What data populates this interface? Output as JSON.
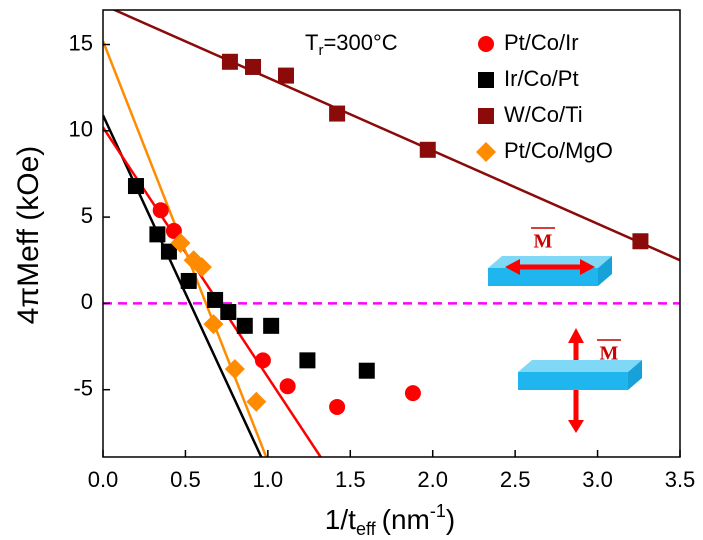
{
  "chart_data": {
    "type": "scatter",
    "annotation": {
      "base": "T",
      "sub": "r",
      "rest": "=300°C"
    },
    "x_label": {
      "base": "1/t",
      "sub": "eff",
      "mid": "(nm",
      "sup": "-1",
      "end": ")"
    },
    "y_label": "4πMeff (kOe)",
    "xlim": [
      0,
      3.5
    ],
    "ylim": [
      -8.9,
      17
    ],
    "xticks": [
      {
        "value": 0,
        "label": "0.0"
      },
      0.5,
      {
        "value": 1,
        "label": "1.0"
      },
      1.5,
      {
        "value": 2,
        "label": "2.0"
      },
      2.5,
      {
        "value": 3,
        "label": "3.0"
      },
      3.5
    ],
    "yticks": [
      -5,
      0,
      5,
      10,
      15
    ],
    "legend": "upper right",
    "series": [
      {
        "name": "Pt/Co/Ir",
        "color": "#ff0000",
        "marker": "circle",
        "x": [
          0.35,
          0.43,
          0.97,
          1.12,
          1.42,
          1.88
        ],
        "values": [
          5.4,
          4.2,
          -3.3,
          -4.8,
          -6.0,
          -5.2
        ]
      },
      {
        "name": "Ir/Co/Pt",
        "color": "#000000",
        "marker": "square",
        "x": [
          0.2,
          0.33,
          0.4,
          0.52,
          0.68,
          0.76,
          0.86,
          1.02,
          1.24,
          1.6
        ],
        "values": [
          6.8,
          4.0,
          3.0,
          1.3,
          0.2,
          -0.5,
          -1.3,
          -1.3,
          -3.3,
          -3.9
        ]
      },
      {
        "name": "W/Co/Ti",
        "color": "#8b0a0a",
        "marker": "square",
        "x": [
          0.77,
          0.91,
          1.11,
          1.42,
          1.97,
          3.26
        ],
        "values": [
          14.0,
          13.7,
          13.2,
          11.0,
          8.9,
          3.6
        ]
      },
      {
        "name": "Pt/Co/MgO",
        "color": "#ff8c00",
        "marker": "diamond",
        "x": [
          0.47,
          0.55,
          0.6,
          0.67,
          0.8,
          0.93
        ],
        "values": [
          3.5,
          2.5,
          2.1,
          -1.2,
          -3.8,
          -5.7
        ]
      }
    ],
    "fits": [
      {
        "color": "#8b0a0a",
        "x": [
          0,
          3.5
        ],
        "values": [
          17.3,
          2.5
        ]
      },
      {
        "color": "#000000",
        "x": [
          0,
          0.96
        ],
        "values": [
          10.9,
          -8.9
        ]
      },
      {
        "color": "#ff0000",
        "x": [
          0,
          1.32
        ],
        "values": [
          10.2,
          -8.9
        ]
      },
      {
        "color": "#ff8c00",
        "x": [
          0,
          0.99
        ],
        "values": [
          15.2,
          -8.9
        ]
      }
    ],
    "hline": {
      "value": 0,
      "color": "#ff00ff"
    },
    "icons": [
      "M",
      "M"
    ]
  }
}
